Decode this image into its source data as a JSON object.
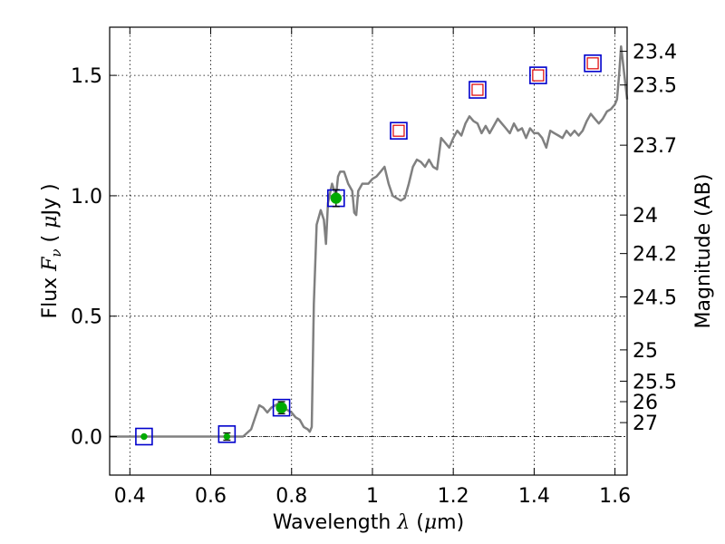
{
  "chart_data": {
    "type": "line",
    "xlabel_parts": [
      "Wavelength  ",
      "λ",
      " (",
      "μ",
      "m)"
    ],
    "ylabel_parts": [
      "Flux  ",
      "F",
      "ν",
      "  ( ",
      "μ",
      "Jy )"
    ],
    "y2label": "Magnitude (AB)",
    "xlim": [
      0.35,
      1.63
    ],
    "ylim": [
      -0.16,
      1.7
    ],
    "grid": true,
    "x_ticks": [
      0.4,
      0.6,
      0.8,
      1.0,
      1.2,
      1.4,
      1.6
    ],
    "x_tick_labels": [
      "0.4",
      "0.6",
      "0.8",
      "1",
      "1.2",
      "1.4",
      "1.6"
    ],
    "y_ticks": [
      0.0,
      0.5,
      1.0,
      1.5
    ],
    "y_tick_labels": [
      "0.0",
      "0.5",
      "1.0",
      "1.5"
    ],
    "y2_ticks": [
      {
        "label": "23.4",
        "flux": 1.6
      },
      {
        "label": "23.5",
        "flux": 1.46
      },
      {
        "label": "23.7",
        "flux": 1.21
      },
      {
        "label": "24",
        "flux": 0.92
      },
      {
        "label": "24.2",
        "flux": 0.76
      },
      {
        "label": "24.5",
        "flux": 0.58
      },
      {
        "label": "25",
        "flux": 0.36
      },
      {
        "label": "25.5",
        "flux": 0.23
      },
      {
        "label": "26",
        "flux": 0.145
      },
      {
        "label": "27",
        "flux": 0.058
      }
    ],
    "model_spectrum": {
      "color": "#808080",
      "points": [
        [
          0.35,
          0.0
        ],
        [
          0.5,
          0.0
        ],
        [
          0.68,
          0.0
        ],
        [
          0.7,
          0.03
        ],
        [
          0.72,
          0.13
        ],
        [
          0.73,
          0.12
        ],
        [
          0.74,
          0.1
        ],
        [
          0.75,
          0.12
        ],
        [
          0.76,
          0.13
        ],
        [
          0.77,
          0.14
        ],
        [
          0.78,
          0.12
        ],
        [
          0.79,
          0.11
        ],
        [
          0.8,
          0.1
        ],
        [
          0.81,
          0.08
        ],
        [
          0.82,
          0.07
        ],
        [
          0.83,
          0.04
        ],
        [
          0.84,
          0.03
        ],
        [
          0.845,
          0.02
        ],
        [
          0.85,
          0.04
        ],
        [
          0.855,
          0.55
        ],
        [
          0.862,
          0.88
        ],
        [
          0.872,
          0.94
        ],
        [
          0.88,
          0.9
        ],
        [
          0.885,
          0.8
        ],
        [
          0.89,
          0.97
        ],
        [
          0.9,
          1.05
        ],
        [
          0.91,
          1.0
        ],
        [
          0.915,
          1.08
        ],
        [
          0.92,
          1.1
        ],
        [
          0.93,
          1.1
        ],
        [
          0.94,
          1.05
        ],
        [
          0.95,
          1.02
        ],
        [
          0.955,
          0.93
        ],
        [
          0.96,
          0.92
        ],
        [
          0.965,
          1.02
        ],
        [
          0.975,
          1.05
        ],
        [
          0.99,
          1.05
        ],
        [
          1.0,
          1.07
        ],
        [
          1.01,
          1.08
        ],
        [
          1.02,
          1.1
        ],
        [
          1.03,
          1.12
        ],
        [
          1.04,
          1.05
        ],
        [
          1.05,
          1.0
        ],
        [
          1.06,
          0.99
        ],
        [
          1.07,
          0.98
        ],
        [
          1.08,
          0.99
        ],
        [
          1.09,
          1.05
        ],
        [
          1.1,
          1.12
        ],
        [
          1.11,
          1.15
        ],
        [
          1.12,
          1.14
        ],
        [
          1.13,
          1.12
        ],
        [
          1.14,
          1.15
        ],
        [
          1.15,
          1.12
        ],
        [
          1.16,
          1.11
        ],
        [
          1.17,
          1.24
        ],
        [
          1.18,
          1.22
        ],
        [
          1.19,
          1.2
        ],
        [
          1.2,
          1.24
        ],
        [
          1.21,
          1.27
        ],
        [
          1.22,
          1.25
        ],
        [
          1.23,
          1.3
        ],
        [
          1.24,
          1.33
        ],
        [
          1.25,
          1.31
        ],
        [
          1.26,
          1.3
        ],
        [
          1.27,
          1.26
        ],
        [
          1.28,
          1.29
        ],
        [
          1.29,
          1.26
        ],
        [
          1.3,
          1.29
        ],
        [
          1.31,
          1.32
        ],
        [
          1.32,
          1.3
        ],
        [
          1.33,
          1.28
        ],
        [
          1.34,
          1.26
        ],
        [
          1.35,
          1.3
        ],
        [
          1.36,
          1.27
        ],
        [
          1.37,
          1.28
        ],
        [
          1.38,
          1.24
        ],
        [
          1.39,
          1.28
        ],
        [
          1.4,
          1.26
        ],
        [
          1.41,
          1.26
        ],
        [
          1.42,
          1.24
        ],
        [
          1.43,
          1.2
        ],
        [
          1.44,
          1.27
        ],
        [
          1.45,
          1.26
        ],
        [
          1.46,
          1.25
        ],
        [
          1.47,
          1.24
        ],
        [
          1.48,
          1.27
        ],
        [
          1.49,
          1.25
        ],
        [
          1.5,
          1.27
        ],
        [
          1.51,
          1.25
        ],
        [
          1.52,
          1.27
        ],
        [
          1.53,
          1.31
        ],
        [
          1.54,
          1.34
        ],
        [
          1.55,
          1.32
        ],
        [
          1.56,
          1.3
        ],
        [
          1.57,
          1.32
        ],
        [
          1.58,
          1.35
        ],
        [
          1.59,
          1.36
        ],
        [
          1.6,
          1.38
        ],
        [
          1.605,
          1.4
        ],
        [
          1.61,
          1.5
        ],
        [
          1.615,
          1.62
        ],
        [
          1.62,
          1.55
        ],
        [
          1.63,
          1.4
        ]
      ]
    },
    "model_photometry": {
      "marker": "open square",
      "edge_color": "#0000cc",
      "points": [
        [
          0.435,
          0.0
        ],
        [
          0.64,
          0.01
        ],
        [
          0.775,
          0.12
        ],
        [
          0.91,
          0.99
        ],
        [
          1.065,
          1.27
        ],
        [
          1.26,
          1.44
        ],
        [
          1.41,
          1.5
        ],
        [
          1.545,
          1.55
        ]
      ]
    },
    "upper_limits": {
      "marker": "open square",
      "edge_color": "#dd0000",
      "points": [
        [
          1.065,
          1.27
        ],
        [
          1.26,
          1.44
        ],
        [
          1.41,
          1.5
        ],
        [
          1.545,
          1.55
        ]
      ]
    },
    "detections": {
      "marker": "filled circle",
      "color": "#00aa00",
      "points": [
        {
          "x": 0.435,
          "y": 0.0,
          "err": 0.0
        },
        {
          "x": 0.64,
          "y": 0.0,
          "err": 0.015
        },
        {
          "x": 0.775,
          "y": 0.12,
          "err": 0.025
        },
        {
          "x": 0.91,
          "y": 0.99,
          "err": 0.035
        }
      ]
    },
    "zero_line": {
      "y": 0.0,
      "style": "dash-dot",
      "color": "#000000"
    }
  }
}
